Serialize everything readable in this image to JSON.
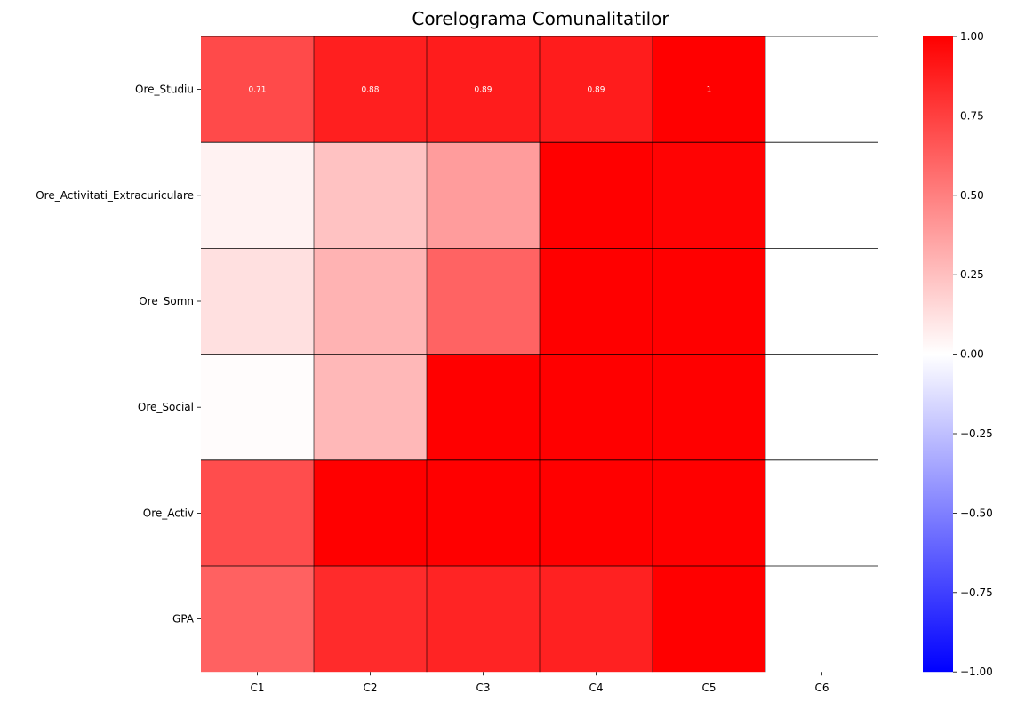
{
  "chart_data": {
    "type": "heatmap",
    "title": "Corelograma Comunalitatilor",
    "rows": [
      "Ore_Studiu",
      "Ore_Activitati_Extracuriculare",
      "Ore_Somn",
      "Ore_Social",
      "Ore_Activ",
      "GPA"
    ],
    "columns": [
      "C1",
      "C2",
      "C3",
      "C4",
      "C5",
      "C6"
    ],
    "values": [
      [
        0.71,
        0.88,
        0.89,
        0.89,
        1.0,
        null
      ],
      [
        0.05,
        0.24,
        0.39,
        1.0,
        0.99,
        null
      ],
      [
        0.12,
        0.3,
        0.61,
        1.0,
        1.0,
        null
      ],
      [
        0.01,
        0.28,
        1.0,
        1.0,
        1.0,
        null
      ],
      [
        0.7,
        1.0,
        1.0,
        1.0,
        1.0,
        null
      ],
      [
        0.62,
        0.83,
        0.86,
        0.87,
        1.0,
        null
      ]
    ],
    "annotations": [
      {
        "row": 0,
        "col": 0,
        "text": "0.71"
      },
      {
        "row": 0,
        "col": 1,
        "text": "0.88"
      },
      {
        "row": 0,
        "col": 2,
        "text": "0.89"
      },
      {
        "row": 0,
        "col": 3,
        "text": "0.89"
      },
      {
        "row": 0,
        "col": 4,
        "text": "1"
      }
    ],
    "colorbar": {
      "vmin": -1.0,
      "vmax": 1.0,
      "tick_labels": [
        "1.00",
        "0.75",
        "0.50",
        "0.25",
        "0.00",
        "−0.25",
        "−0.50",
        "−0.75",
        "−1.00"
      ],
      "tick_values": [
        1.0,
        0.75,
        0.5,
        0.25,
        0.0,
        -0.25,
        -0.5,
        -0.75,
        -1.0
      ],
      "colormap": "bwr",
      "colors": {
        "low": "#0000ff",
        "mid": "#ffffff",
        "high": "#ff0000"
      }
    },
    "grid": "row lines",
    "legend": "colorbar-right"
  }
}
